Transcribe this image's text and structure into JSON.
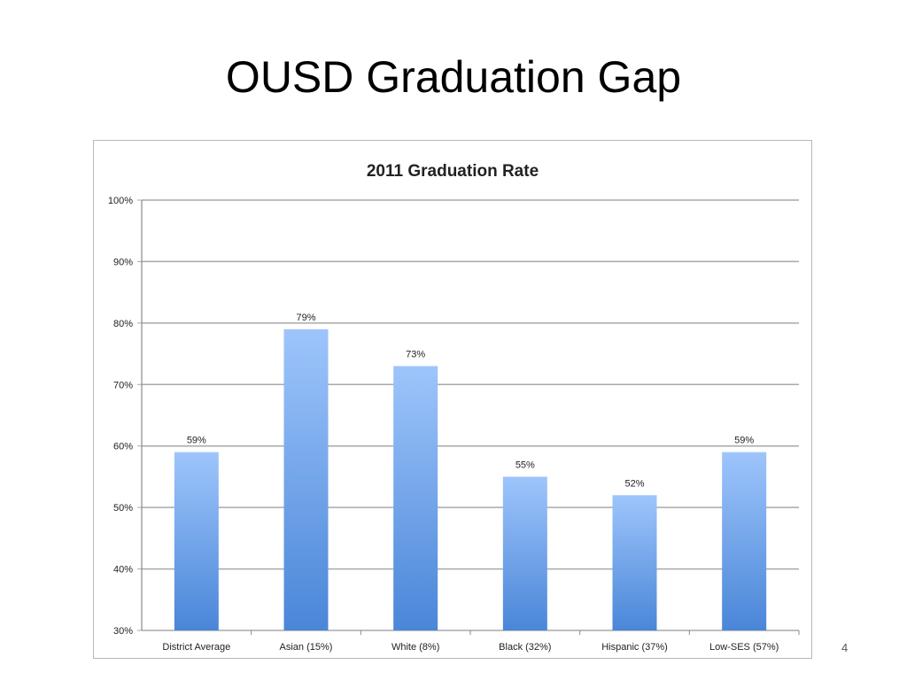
{
  "slide": {
    "title": "OUSD Graduation Gap",
    "page_number": "4"
  },
  "chart_data": {
    "type": "bar",
    "title": "2011 Graduation Rate",
    "xlabel": "",
    "ylabel": "",
    "categories": [
      "District Average",
      "Asian (15%)",
      "White (8%)",
      "Black (32%)",
      "Hispanic (37%)",
      "Low-SES (57%)"
    ],
    "values": [
      59,
      79,
      73,
      55,
      52,
      59
    ],
    "data_labels": [
      "59%",
      "79%",
      "73%",
      "55%",
      "52%",
      "59%"
    ],
    "ylim": [
      30,
      100
    ],
    "yticks": [
      30,
      40,
      50,
      60,
      70,
      80,
      90,
      100
    ],
    "ytick_labels": [
      "30%",
      "40%",
      "50%",
      "60%",
      "70%",
      "80%",
      "90%",
      "100%"
    ],
    "grid": true,
    "legend": "none",
    "colors": {
      "bar_top": "#9ec5fb",
      "bar_bottom": "#4a86d8",
      "grid": "#a9a9a9"
    }
  }
}
